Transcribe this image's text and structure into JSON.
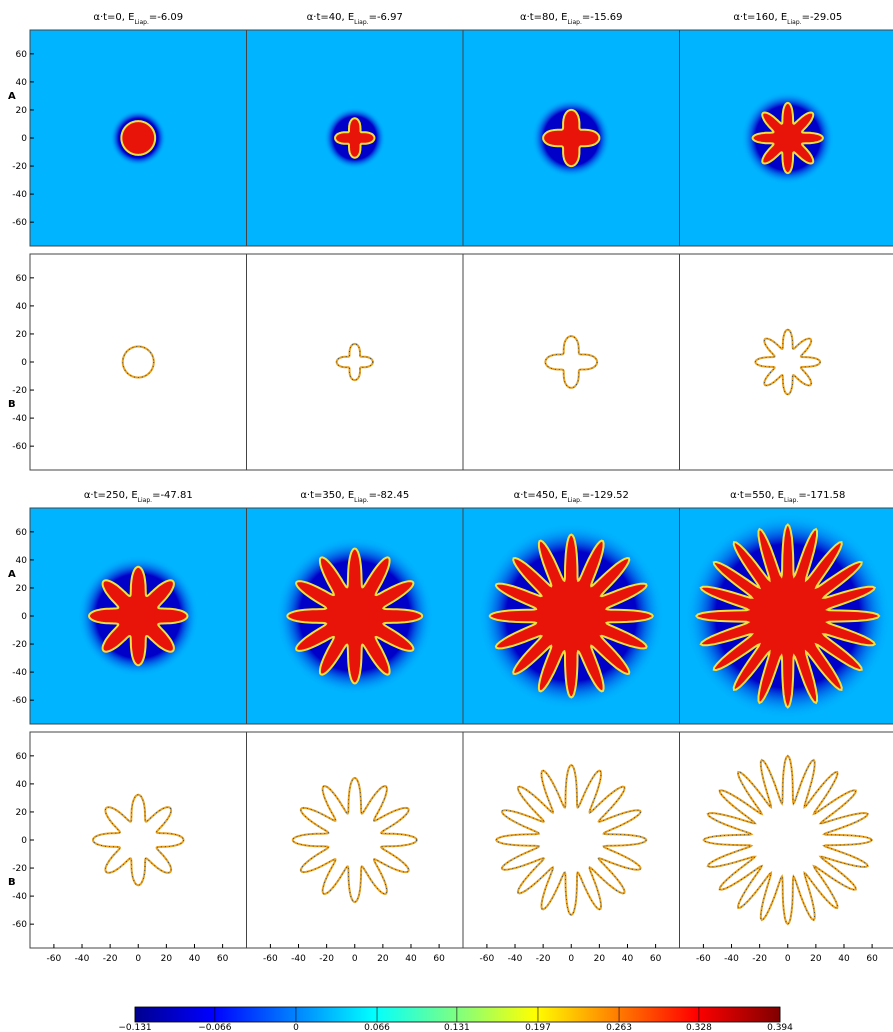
{
  "figure": {
    "titles": [
      [
        "α·t=0, E",
        "Liap.",
        "=-6.09"
      ],
      [
        "α·t=40, E",
        "Liap.",
        "=-6.97"
      ],
      [
        "α·t=80, E",
        "Liap.",
        "=-15.69"
      ],
      [
        "α·t=160, E",
        "Liap.",
        "=-29.05"
      ],
      [
        "α·t=250, E",
        "Liap.",
        "=-47.81"
      ],
      [
        "α·t=350, E",
        "Liap.",
        "=-82.45"
      ],
      [
        "α·t=450, E",
        "Liap.",
        "=-129.52"
      ],
      [
        "α·t=550, E",
        "Liap.",
        "=-171.58"
      ]
    ],
    "row_labels": [
      "A",
      "B"
    ],
    "axes": {
      "xlim": [
        -77,
        77
      ],
      "ylim": [
        -77,
        77
      ],
      "xticks": [
        -60,
        -40,
        -20,
        0,
        20,
        40,
        60
      ],
      "yticks": [
        60,
        40,
        20,
        0,
        -20,
        -40,
        -60
      ]
    },
    "colorbar": {
      "lim": [
        -0.131,
        0.394
      ],
      "ticks": [
        {
          "value": -0.131,
          "label": "−0.131"
        },
        {
          "value": -0.066,
          "label": "−0.066"
        },
        0,
        0.066,
        0.131,
        0.197,
        0.263,
        0.328,
        0.394
      ]
    }
  }
}
